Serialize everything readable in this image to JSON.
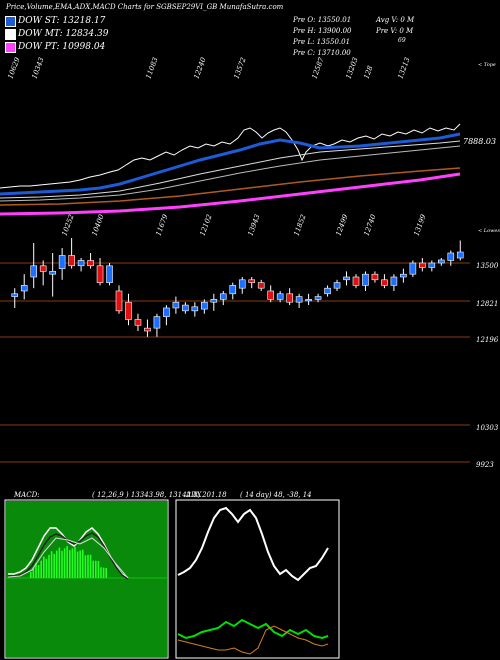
{
  "header": {
    "title": "Price,Volume,EMA,ADX,MACD Charts for SGBSEP29VI_GB MunafaSutra.com"
  },
  "legend": [
    {
      "label": "DOW ST: 13218.17",
      "color": "#1e5bd6"
    },
    {
      "label": "DOW MT: 12834.39",
      "color": "#ffffff"
    },
    {
      "label": "DOW PT: 10998.04",
      "color": "#ff40ff"
    }
  ],
  "info": {
    "col1": [
      "Pre  O: 13550.01",
      "Pre  H: 13900.00",
      "Pre  L: 13550.01",
      "Pre  C: 13710.00"
    ],
    "col2": [
      "Avg V: 0  M",
      "Pre  V: 0  M",
      "69"
    ]
  },
  "labels": {
    "top_right": "< Tope",
    "mid_right": "< Lowes",
    "ema_price": "7888.03",
    "macd_label": "MACD:",
    "macd_values": "( 12,26,9 ) 13343.98,  13142.8,  201.18",
    "adx_label": "ADX",
    "adx_values": "( 14  day) 48,  -38,  14"
  },
  "chart_data": [
    {
      "type": "line",
      "name": "ema-panel",
      "top_labels": [
        "10629",
        "10343",
        "11083",
        "12240",
        "13572",
        "12587",
        "13203",
        "128",
        "13213"
      ],
      "price_label": "7888.03"
    },
    {
      "type": "candlestick",
      "name": "price-panel",
      "top_labels": [
        "10252",
        "10400",
        "11679",
        "12102",
        "13943",
        "11852",
        "12499",
        "12740",
        "13199"
      ],
      "y_tick_labels": [
        "13500",
        "12821",
        "12196",
        "10303",
        "9923"
      ],
      "levels": [
        13500,
        12821,
        12196,
        10303,
        9923
      ],
      "candles": [
        {
          "o": 12900,
          "h": 13050,
          "l": 12700,
          "c": 12950
        },
        {
          "o": 13000,
          "h": 13300,
          "l": 12850,
          "c": 13100
        },
        {
          "o": 13250,
          "h": 13900,
          "l": 13050,
          "c": 13450
        },
        {
          "o": 13450,
          "h": 13550,
          "l": 13100,
          "c": 13350
        },
        {
          "o": 13300,
          "h": 13700,
          "l": 12900,
          "c": 13350
        },
        {
          "o": 13400,
          "h": 13800,
          "l": 13200,
          "c": 13650
        },
        {
          "o": 13650,
          "h": 14000,
          "l": 13400,
          "c": 13450
        },
        {
          "o": 13450,
          "h": 13600,
          "l": 13350,
          "c": 13550
        },
        {
          "o": 13550,
          "h": 13700,
          "l": 13400,
          "c": 13450
        },
        {
          "o": 13450,
          "h": 13600,
          "l": 13100,
          "c": 13150
        },
        {
          "o": 13150,
          "h": 13500,
          "l": 13100,
          "c": 13450
        },
        {
          "o": 13000,
          "h": 13100,
          "l": 12600,
          "c": 12650
        },
        {
          "o": 12800,
          "h": 12950,
          "l": 12400,
          "c": 12500
        },
        {
          "o": 12500,
          "h": 12600,
          "l": 12300,
          "c": 12400
        },
        {
          "o": 12350,
          "h": 12500,
          "l": 12200,
          "c": 12300
        },
        {
          "o": 12350,
          "h": 12600,
          "l": 12200,
          "c": 12550
        },
        {
          "o": 12550,
          "h": 12750,
          "l": 12400,
          "c": 12700
        },
        {
          "o": 12700,
          "h": 12900,
          "l": 12600,
          "c": 12800
        },
        {
          "o": 12650,
          "h": 12800,
          "l": 12600,
          "c": 12750
        },
        {
          "o": 12650,
          "h": 12800,
          "l": 12550,
          "c": 12720
        },
        {
          "o": 12680,
          "h": 12850,
          "l": 12600,
          "c": 12800
        },
        {
          "o": 12800,
          "h": 12950,
          "l": 12650,
          "c": 12850
        },
        {
          "o": 12850,
          "h": 13000,
          "l": 12750,
          "c": 12950
        },
        {
          "o": 12950,
          "h": 13150,
          "l": 12850,
          "c": 13100
        },
        {
          "o": 13050,
          "h": 13250,
          "l": 12950,
          "c": 13200
        },
        {
          "o": 13200,
          "h": 13250,
          "l": 13050,
          "c": 13150
        },
        {
          "o": 13150,
          "h": 13200,
          "l": 13000,
          "c": 13050
        },
        {
          "o": 13000,
          "h": 13100,
          "l": 12800,
          "c": 12850
        },
        {
          "o": 12850,
          "h": 13000,
          "l": 12800,
          "c": 12950
        },
        {
          "o": 12950,
          "h": 13050,
          "l": 12750,
          "c": 12800
        },
        {
          "o": 12800,
          "h": 12950,
          "l": 12700,
          "c": 12900
        },
        {
          "o": 12850,
          "h": 12950,
          "l": 12750,
          "c": 12850
        },
        {
          "o": 12850,
          "h": 12950,
          "l": 12800,
          "c": 12900
        },
        {
          "o": 12950,
          "h": 13100,
          "l": 12900,
          "c": 13050
        },
        {
          "o": 13050,
          "h": 13200,
          "l": 13000,
          "c": 13150
        },
        {
          "o": 13200,
          "h": 13350,
          "l": 13100,
          "c": 13250
        },
        {
          "o": 13250,
          "h": 13300,
          "l": 13050,
          "c": 13100
        },
        {
          "o": 13100,
          "h": 13350,
          "l": 13000,
          "c": 13300
        },
        {
          "o": 13300,
          "h": 13350,
          "l": 13150,
          "c": 13200
        },
        {
          "o": 13200,
          "h": 13300,
          "l": 13050,
          "c": 13100
        },
        {
          "o": 13100,
          "h": 13300,
          "l": 13000,
          "c": 13250
        },
        {
          "o": 13250,
          "h": 13400,
          "l": 13150,
          "c": 13300
        },
        {
          "o": 13300,
          "h": 13550,
          "l": 13250,
          "c": 13500
        },
        {
          "o": 13500,
          "h": 13600,
          "l": 13350,
          "c": 13420
        },
        {
          "o": 13420,
          "h": 13550,
          "l": 13350,
          "c": 13500
        },
        {
          "o": 13500,
          "h": 13600,
          "l": 13450,
          "c": 13560
        },
        {
          "o": 13550,
          "h": 13750,
          "l": 13450,
          "c": 13700
        },
        {
          "o": 13600,
          "h": 13950,
          "l": 13550,
          "c": 13720
        }
      ]
    },
    {
      "type": "line",
      "name": "macd-panel"
    },
    {
      "type": "line",
      "name": "adx-panel"
    }
  ]
}
